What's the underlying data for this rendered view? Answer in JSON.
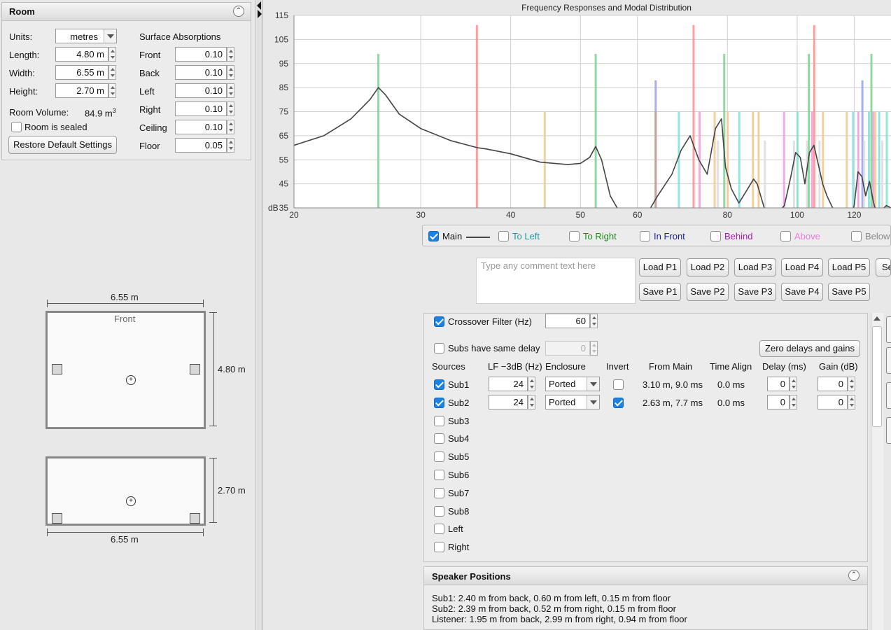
{
  "room": {
    "title": "Room",
    "units_label": "Units:",
    "units_value": "metres",
    "length_label": "Length:",
    "length_value": "4.80 m",
    "width_label": "Width:",
    "width_value": "6.55 m",
    "height_label": "Height:",
    "height_value": "2.70 m",
    "volume_label": "Room Volume:",
    "volume_value": "84.9 m",
    "volume_unit_sup": "3",
    "sealed_label": "Room is sealed",
    "sealed_checked": false,
    "restore_label": "Restore Default Settings",
    "absorptions_title": "Surface Absorptions",
    "absorptions": [
      {
        "label": "Front",
        "value": "0.10"
      },
      {
        "label": "Back",
        "value": "0.10"
      },
      {
        "label": "Left",
        "value": "0.10"
      },
      {
        "label": "Right",
        "value": "0.10"
      },
      {
        "label": "Ceiling",
        "value": "0.10"
      },
      {
        "label": "Floor",
        "value": "0.05"
      }
    ]
  },
  "plan": {
    "width_top": "6.55 m",
    "front_label": "Front",
    "length_side": "4.80 m",
    "height_side": "2.70 m",
    "width_bottom": "6.55 m"
  },
  "chart_data": {
    "type": "line",
    "title": "Frequency Responses and Modal Distribution",
    "ylabel": "dB",
    "xlim": [
      20,
      135
    ],
    "ylim": [
      35,
      115
    ],
    "x_scale": "log",
    "x_ticks": [
      "20",
      "30",
      "40",
      "50",
      "60",
      "80",
      "100",
      "120"
    ],
    "x_tick_values": [
      20,
      30,
      40,
      50,
      60,
      80,
      100,
      120
    ],
    "y_ticks": [
      115,
      105,
      95,
      85,
      75,
      65,
      55,
      45,
      35
    ],
    "grid": true,
    "series": [
      {
        "name": "Main",
        "color": "#444444",
        "x": [
          20,
          22,
          24,
          25.5,
          26.2,
          26.8,
          28,
          30,
          33,
          36,
          37,
          40,
          44,
          48,
          50,
          51.5,
          52.5,
          53.5,
          55,
          58,
          62,
          64,
          67,
          69,
          71,
          73,
          75,
          77,
          78.5,
          79.5,
          81,
          83,
          85,
          87,
          88,
          90,
          92,
          94,
          96,
          98,
          99.5,
          101,
          102.5,
          104,
          105.5,
          107,
          108.5,
          110,
          112,
          114,
          116,
          118,
          120,
          121.5,
          123,
          124.5,
          126,
          127.5,
          129,
          131,
          133,
          135
        ],
        "y": [
          61,
          65,
          72,
          80,
          85,
          82,
          74,
          68,
          63,
          60,
          59.5,
          57.5,
          54,
          53,
          53.5,
          56,
          60.5,
          55,
          40,
          28,
          33,
          40,
          49,
          59,
          65,
          55,
          49,
          68,
          72,
          52,
          43,
          37,
          42,
          47,
          45,
          35,
          30,
          33,
          36,
          48,
          58,
          56,
          45,
          58,
          61,
          53,
          45,
          40,
          35,
          30,
          26,
          28,
          36,
          50,
          48,
          40,
          46,
          38,
          32,
          34,
          36,
          35
        ]
      }
    ],
    "modes": [
      {
        "x": 26.2,
        "top": 99,
        "color": "#7ed28f"
      },
      {
        "x": 35.9,
        "top": 111,
        "color": "#ff8c8c"
      },
      {
        "x": 44.6,
        "top": 75,
        "color": "#f0c890"
      },
      {
        "x": 52.5,
        "top": 99,
        "color": "#7ed28f"
      },
      {
        "x": 63.6,
        "top": 88,
        "color": "#9aa0f0"
      },
      {
        "x": 63.6,
        "top": 75,
        "color": "#d0a080"
      },
      {
        "x": 68.5,
        "top": 75,
        "color": "#7fe0d8"
      },
      {
        "x": 71.8,
        "top": 111,
        "color": "#ff8c8c"
      },
      {
        "x": 73.2,
        "top": 75,
        "color": "#f59ae0"
      },
      {
        "x": 76.8,
        "top": 75,
        "color": "#f0c890"
      },
      {
        "x": 77.6,
        "top": 63,
        "color": "#dddddd"
      },
      {
        "x": 79.2,
        "top": 99,
        "color": "#7ed28f"
      },
      {
        "x": 80.1,
        "top": 75,
        "color": "#f0c890"
      },
      {
        "x": 83.1,
        "top": 75,
        "color": "#7fe0d8"
      },
      {
        "x": 86.8,
        "top": 75,
        "color": "#f0c890"
      },
      {
        "x": 88.4,
        "top": 75,
        "color": "#f0c890"
      },
      {
        "x": 90.2,
        "top": 63,
        "color": "#dddddd"
      },
      {
        "x": 95.9,
        "top": 75,
        "color": "#f59ae0"
      },
      {
        "x": 99.0,
        "top": 63,
        "color": "#dddddd"
      },
      {
        "x": 100.1,
        "top": 75,
        "color": "#7fe0d8"
      },
      {
        "x": 103.2,
        "top": 63,
        "color": "#dddddd"
      },
      {
        "x": 103.8,
        "top": 99,
        "color": "#7ed28f"
      },
      {
        "x": 104.9,
        "top": 75,
        "color": "#f59ae0"
      },
      {
        "x": 105.6,
        "top": 111,
        "color": "#ff8c8c"
      },
      {
        "x": 107.4,
        "top": 63,
        "color": "#dddddd"
      },
      {
        "x": 108.6,
        "top": 75,
        "color": "#f0c890"
      },
      {
        "x": 117.2,
        "top": 75,
        "color": "#f0c890"
      },
      {
        "x": 119.6,
        "top": 75,
        "color": "#7fe0d8"
      },
      {
        "x": 121.6,
        "top": 75,
        "color": "#f59ae0"
      },
      {
        "x": 123.2,
        "top": 88,
        "color": "#9aa0f0"
      },
      {
        "x": 123.9,
        "top": 63,
        "color": "#dddddd"
      },
      {
        "x": 125.8,
        "top": 75,
        "color": "#7fe0d8"
      },
      {
        "x": 126.8,
        "top": 99,
        "color": "#7ed28f"
      },
      {
        "x": 127.6,
        "top": 75,
        "color": "#f59ae0"
      },
      {
        "x": 128.4,
        "top": 75,
        "color": "#f0c890"
      },
      {
        "x": 130.0,
        "top": 75,
        "color": "#7fe0d8"
      },
      {
        "x": 131.3,
        "top": 63,
        "color": "#dddddd"
      },
      {
        "x": 133.2,
        "top": 75,
        "color": "#7fe0d8"
      }
    ]
  },
  "legend": [
    {
      "label": "Main",
      "checked": true,
      "color": "#111111"
    },
    {
      "label": "To Left",
      "checked": false,
      "color": "#169b9b"
    },
    {
      "label": "To Right",
      "checked": false,
      "color": "#1a8a1a"
    },
    {
      "label": "In Front",
      "checked": false,
      "color": "#1a1aaa"
    },
    {
      "label": "Behind",
      "checked": false,
      "color": "#aa1aaa"
    },
    {
      "label": "Above",
      "checked": false,
      "color": "#f07ae0"
    },
    {
      "label": "Below",
      "checked": false,
      "color": "#888888"
    }
  ],
  "comment_placeholder": "Type any comment text here",
  "load_buttons": [
    "Load P1",
    "Load P2",
    "Load P3",
    "Load P4",
    "Load P5",
    "Se"
  ],
  "save_buttons": [
    "Save P1",
    "Save P2",
    "Save P3",
    "Save P4",
    "Save P5"
  ],
  "crossover": {
    "label": "Crossover Filter (Hz)",
    "checked": true,
    "value": "60"
  },
  "same_delay": {
    "label": "Subs have same delay",
    "checked": false,
    "value": "0"
  },
  "zero_button": "Zero delays and gains",
  "headers": {
    "sources": "Sources",
    "lf": "LF −3dB (Hz)",
    "enclosure": "Enclosure",
    "invert": "Invert",
    "from_main": "From Main",
    "time_align": "Time Align",
    "delay": "Delay (ms)",
    "gain": "Gain (dB)"
  },
  "sources": [
    {
      "name": "Sub1",
      "checked": true,
      "lf": "24",
      "enclosure": "Ported",
      "invert": false,
      "from_main": "3.10 m, 9.0 ms",
      "time_align": "0.0 ms",
      "delay": "0",
      "gain": "0"
    },
    {
      "name": "Sub2",
      "checked": true,
      "lf": "24",
      "enclosure": "Ported",
      "invert": true,
      "from_main": "2.63 m, 7.7 ms",
      "time_align": "0.0 ms",
      "delay": "0",
      "gain": "0"
    },
    {
      "name": "Sub3",
      "checked": false
    },
    {
      "name": "Sub4",
      "checked": false
    },
    {
      "name": "Sub5",
      "checked": false
    },
    {
      "name": "Sub6",
      "checked": false
    },
    {
      "name": "Sub7",
      "checked": false
    },
    {
      "name": "Sub8",
      "checked": false
    },
    {
      "name": "Left",
      "checked": false
    },
    {
      "name": "Right",
      "checked": false
    }
  ],
  "speaker_positions": {
    "title": "Speaker Positions",
    "lines": [
      "Sub1: 2.40 m from back, 0.60 m from left, 0.15 m from floor",
      "Sub2: 2.39 m from back, 0.52 m from right, 0.15 m from floor",
      "Listener: 1.95 m from back, 2.99 m from right, 0.94 m from floor"
    ]
  }
}
